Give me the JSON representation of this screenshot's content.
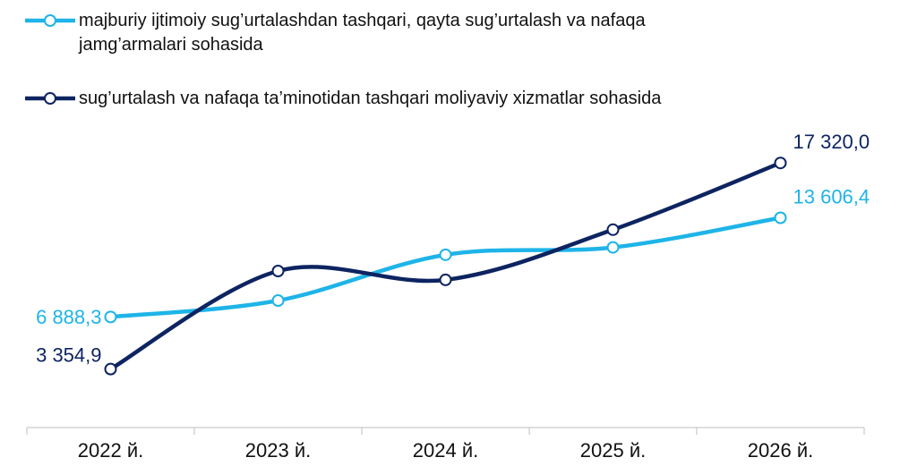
{
  "chart_data": {
    "type": "line",
    "categories": [
      "2022 й.",
      "2023 й.",
      "2024 й.",
      "2025 й.",
      "2026 й."
    ],
    "series": [
      {
        "name": "majburiy ijtimoiy sug’urtalashdan tashqari, qayta sug’urtalash va nafaqa jamg’armalari sohasida",
        "color": "#1eb4e8",
        "values": [
          6888.3,
          8000,
          11100,
          11600,
          13606.4
        ],
        "value_labels": [
          "6 888,3",
          null,
          null,
          null,
          "13 606,4"
        ]
      },
      {
        "name": "sug’urtalash va nafaqa ta’minotidan tashqari moliyaviy xizmatlar sohasida",
        "color": "#0d2461",
        "values": [
          3354.9,
          10000,
          9400,
          12800,
          17320.0
        ],
        "value_labels": [
          "3 354,9",
          null,
          null,
          null,
          "17 320,0"
        ]
      }
    ],
    "ylim": [
      0,
      20000
    ],
    "smooth": true
  }
}
